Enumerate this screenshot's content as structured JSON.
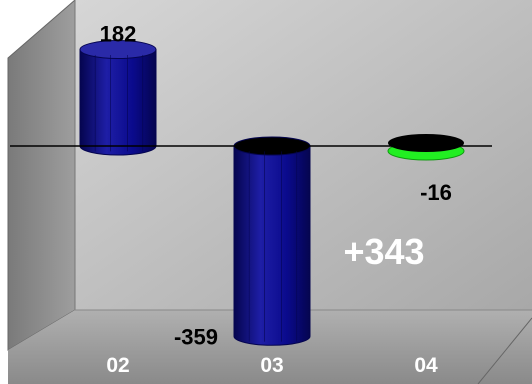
{
  "chart_data": {
    "type": "bar",
    "categories": [
      "02",
      "03",
      "04"
    ],
    "values": [
      182,
      -359,
      -16
    ],
    "data_labels": [
      "182",
      "-359",
      "-16"
    ],
    "annotation": "+343",
    "ylim": [
      -400,
      220
    ],
    "grid": false,
    "colors": {
      "bar": "#0a0a8c",
      "bar_light": "#2a2aa8",
      "bar_dark": "#05054f",
      "highlight": "#22ee22",
      "cap_negative": "#000000",
      "wall_left": "#8c8c8c",
      "wall_back": "#bdbdbd",
      "floor": "#9a9a9a",
      "annotation": "#ffffff"
    }
  }
}
